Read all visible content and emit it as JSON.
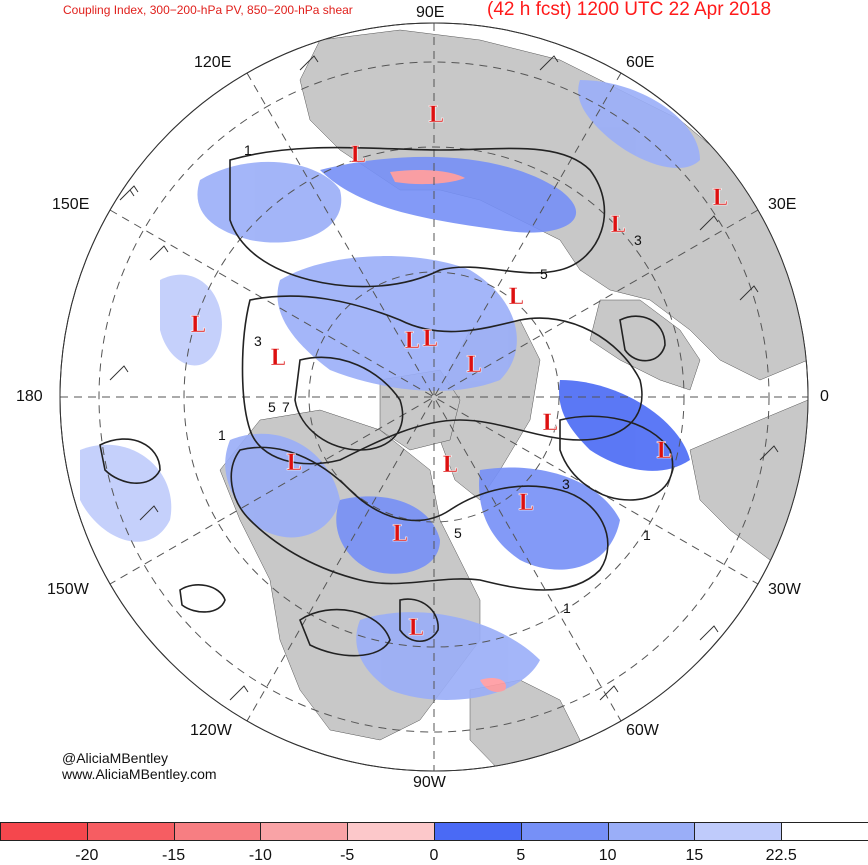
{
  "header": {
    "product_title": "Coupling Index, 300−200-hPa PV, 850−200-hPa shear",
    "forecast_label": "(42 h fcst) 1200 UTC 22 Apr 2018"
  },
  "map": {
    "projection": "north-polar-stereographic",
    "longitude_labels": {
      "lon_90e": "90E",
      "lon_60e": "60E",
      "lon_30e": "30E",
      "lon_0": "0",
      "lon_30w": "30W",
      "lon_60w": "60W",
      "lon_90w": "90W",
      "lon_120w": "120W",
      "lon_150w": "150W",
      "lon_180": "180",
      "lon_150e": "150E",
      "lon_120e": "120E"
    },
    "low_marker_text": "L",
    "contour_labels": [
      "1",
      "3",
      "5",
      "7",
      "1",
      "3",
      "5",
      "3",
      "5",
      "1",
      "1"
    ],
    "colors": {
      "land": "#c8c8c8",
      "ocean": "#ffffff",
      "contour": "#222222",
      "grid": "#555555",
      "low_marker": "#dd1010",
      "shade_positive_light": "#b3c4ff",
      "shade_positive_mid": "#8fa4ff",
      "shade_positive_dark": "#4a6af5",
      "shade_negative": "#ff9aa0"
    }
  },
  "credits": {
    "handle": "@AliciaMBentley",
    "website": "www.AliciaMBentley.com"
  },
  "colorbar": {
    "segments": [
      {
        "color": "#f5474d"
      },
      {
        "color": "#f65d62"
      },
      {
        "color": "#f77e82"
      },
      {
        "color": "#f9a3a6"
      },
      {
        "color": "#fcc8ca"
      },
      {
        "color": "#4a6af5"
      },
      {
        "color": "#7690f7"
      },
      {
        "color": "#9aaef8"
      },
      {
        "color": "#bfcbfb"
      },
      {
        "color": "#ffffff"
      }
    ],
    "tick_labels": [
      "-20",
      "-15",
      "-10",
      "-5",
      "0",
      "5",
      "10",
      "15",
      "22.5"
    ]
  }
}
